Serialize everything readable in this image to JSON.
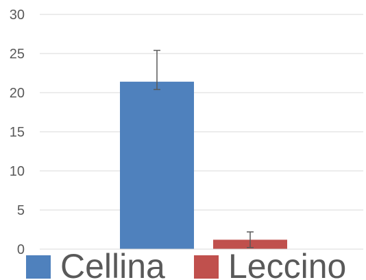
{
  "chart_data": {
    "type": "bar",
    "title": "",
    "xlabel": "",
    "ylabel": "",
    "ylim": [
      0,
      30
    ],
    "yticks": [
      0,
      5,
      10,
      15,
      20,
      25,
      30
    ],
    "grid": true,
    "legend_position": "bottom",
    "series": [
      {
        "name": "Cellina",
        "value": 21.4,
        "error_low": 1.0,
        "error_high": 4.0,
        "color": "#4f81bd"
      },
      {
        "name": "Leccino",
        "value": 1.2,
        "error_low": 1.0,
        "error_high": 1.0,
        "color": "#c0504d"
      }
    ]
  }
}
